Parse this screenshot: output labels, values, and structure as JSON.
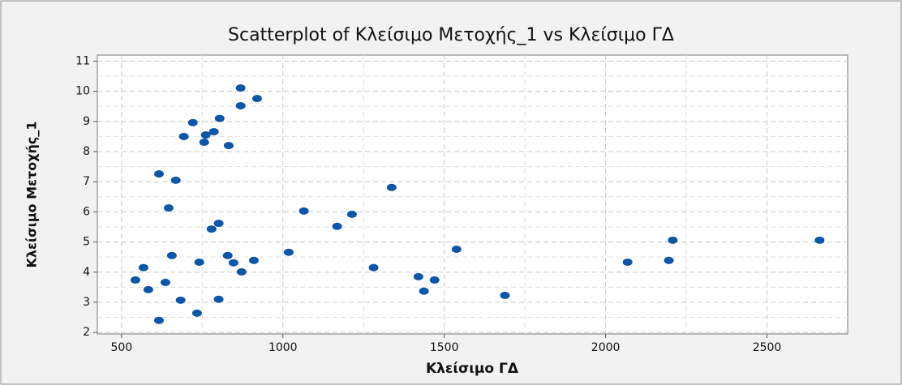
{
  "chart_data": {
    "type": "scatter",
    "title": "Scatterplot of Κλείσιμο Μετοχής_1 vs Κλείσιμο ΓΔ",
    "x_label": "Κλείσιμο ΓΔ",
    "y_label": "Κλείσιμο Μετοχής_1",
    "color": "#0a56a8",
    "grid": true,
    "xlim": [
      425,
      2750
    ],
    "ylim": [
      1.95,
      11.2
    ],
    "xticks": [
      500,
      1000,
      1500,
      2000,
      2500
    ],
    "yticks": [
      2,
      3,
      4,
      5,
      6,
      7,
      8,
      9,
      10,
      11
    ],
    "x": [
      543,
      568,
      583,
      616,
      616,
      636,
      646,
      656,
      668,
      683,
      693,
      721,
      734,
      741,
      756,
      761,
      779,
      786,
      801,
      801,
      804,
      829,
      832,
      847,
      869,
      869,
      872,
      910,
      920,
      1018,
      1065,
      1168,
      1214,
      1281,
      1337,
      1420,
      1437,
      1470,
      1538,
      1688,
      2068,
      2196,
      2208,
      2663
    ],
    "y": [
      3.74,
      4.15,
      3.42,
      7.26,
      2.4,
      3.66,
      6.13,
      4.55,
      7.05,
      3.07,
      8.5,
      8.96,
      2.64,
      4.33,
      8.31,
      8.55,
      5.43,
      8.66,
      5.62,
      3.1,
      9.1,
      4.55,
      8.2,
      4.31,
      10.11,
      9.52,
      4.01,
      4.39,
      9.76,
      4.66,
      6.03,
      5.52,
      5.92,
      4.15,
      6.81,
      3.85,
      3.37,
      3.74,
      4.76,
      3.23,
      4.33,
      4.39,
      5.06,
      5.06
    ]
  }
}
